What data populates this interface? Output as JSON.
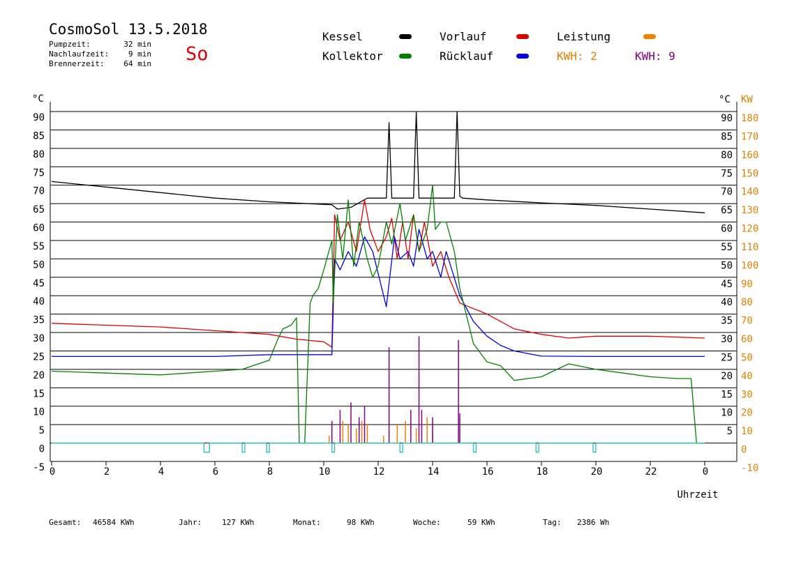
{
  "header": {
    "title": "CosmoSol 13.5.2018",
    "day": "So",
    "stats": [
      {
        "label": "Pumpzeit:",
        "value": "32 min"
      },
      {
        "label": "Nachlaufzeit:",
        "value": "9 min"
      },
      {
        "label": "Brennerzeit:",
        "value": "64 min"
      }
    ]
  },
  "legend": {
    "kessel": {
      "label": "Kessel",
      "color": "#000000"
    },
    "vorlauf": {
      "label": "Vorlauf",
      "color": "#e00000"
    },
    "leistung": {
      "label": "Leistung",
      "color": "#f08000"
    },
    "kollektor": {
      "label": "Kollektor",
      "color": "#008000"
    },
    "ruecklauf": {
      "label": "Rücklauf",
      "color": "#0000e0"
    },
    "kwh1": {
      "label": "KWH: 2",
      "color": "#e08000"
    },
    "kwh2": {
      "label": "KWH: 9",
      "color": "#800080"
    }
  },
  "footer": {
    "gesamt": {
      "label": "Gesamt:",
      "value": "46584 KWh"
    },
    "jahr": {
      "label": "Jahr:",
      "value": "127 KWh"
    },
    "monat": {
      "label": "Monat:",
      "value": "98 KWh"
    },
    "woche": {
      "label": "Woche:",
      "value": "59 KWh"
    },
    "tag": {
      "label": "Tag:",
      "value": "2386 Wh"
    }
  },
  "chart_data": {
    "type": "line",
    "x_unit_label": "Uhrzeit",
    "y_left_unit": "°C",
    "y_right_unit": "°C",
    "y_right2_unit": "KW",
    "xlim": [
      0,
      24
    ],
    "ylim": [
      -5,
      90
    ],
    "y2lim": [
      -10,
      180
    ],
    "x_ticks": [
      "0",
      "2",
      "4",
      "6",
      "8",
      "10",
      "12",
      "14",
      "16",
      "18",
      "20",
      "22",
      "0"
    ],
    "y_ticks": [
      "-5",
      "0",
      "5",
      "10",
      "15",
      "20",
      "25",
      "30",
      "35",
      "40",
      "45",
      "50",
      "55",
      "60",
      "65",
      "70",
      "75",
      "80",
      "85",
      "90"
    ],
    "y_ticks_right": [
      "5",
      "10",
      "15",
      "20",
      "25",
      "30",
      "35",
      "40",
      "45",
      "50",
      "55",
      "60",
      "65",
      "70",
      "75",
      "80",
      "85",
      "90"
    ],
    "y2_ticks": [
      "-10",
      "0",
      "10",
      "20",
      "30",
      "40",
      "50",
      "60",
      "70",
      "80",
      "90",
      "100",
      "110",
      "120",
      "130",
      "140",
      "150",
      "160",
      "170",
      "180"
    ],
    "grid": true,
    "series": [
      {
        "key": "kessel",
        "color": "#000000",
        "x": [
          0,
          2,
          4,
          6,
          8,
          10,
          10.3,
          10.5,
          11,
          11.6,
          12.3,
          12.4,
          12.5,
          12.8,
          13.3,
          13.4,
          13.5,
          13.6,
          14.8,
          14.9,
          15.0,
          15.1,
          16,
          18,
          20,
          22,
          24
        ],
        "y": [
          71,
          69.5,
          68,
          66.5,
          65.5,
          64.8,
          64.7,
          63.5,
          64,
          66.5,
          66.5,
          87,
          66.5,
          66.5,
          66.5,
          90,
          66.5,
          66.5,
          66.5,
          90,
          67,
          66.5,
          66,
          65.2,
          64.5,
          63.5,
          62.5
        ]
      },
      {
        "key": "vorlauf",
        "color": "#e00000",
        "x": [
          0,
          2,
          4,
          6,
          8,
          9,
          10,
          10.3,
          10.4,
          10.6,
          10.9,
          11.2,
          11.5,
          11.7,
          12,
          12.3,
          12.5,
          12.7,
          12.9,
          13.1,
          13.3,
          13.5,
          13.7,
          14,
          14.3,
          14.6,
          15,
          15.5,
          16,
          17,
          18,
          19,
          20,
          22,
          24
        ],
        "y": [
          32.5,
          32,
          31.5,
          30.5,
          29.5,
          28.2,
          27.5,
          26,
          62,
          55,
          60,
          52,
          66,
          58,
          52,
          56,
          61,
          50,
          60,
          50,
          62,
          52,
          60,
          48,
          52,
          45,
          38,
          36.5,
          35,
          31,
          29.5,
          28.5,
          29,
          29,
          28.5
        ]
      },
      {
        "key": "ruecklauf",
        "color": "#0000e0",
        "x": [
          0,
          2,
          4,
          6,
          8,
          9,
          10,
          10.3,
          10.4,
          10.6,
          10.9,
          11.2,
          11.5,
          11.8,
          12.2,
          12.3,
          12.6,
          12.8,
          13.1,
          13.3,
          13.5,
          13.8,
          14,
          14.3,
          14.5,
          15,
          15.5,
          16,
          16.5,
          17,
          18,
          20,
          22,
          24
        ],
        "y": [
          23.5,
          23.5,
          23.5,
          23.5,
          24,
          24,
          24,
          24,
          50,
          47,
          52,
          48,
          56,
          52,
          40,
          37,
          56,
          50,
          52,
          48,
          58,
          50,
          52,
          45,
          52,
          40,
          33,
          29,
          26.5,
          25,
          23.6,
          23.5,
          23.5,
          23.5
        ]
      },
      {
        "key": "kollektor",
        "color": "#008000",
        "x": [
          0,
          2,
          4,
          6,
          7,
          8,
          8.3,
          8.5,
          8.8,
          9.0,
          9.1,
          9.2,
          9.3,
          9.5,
          9.6,
          9.8,
          10,
          10.3,
          10.35,
          10.5,
          10.7,
          10.9,
          11.1,
          11.3,
          11.6,
          11.8,
          12,
          12.3,
          12.5,
          12.8,
          13,
          13.3,
          13.5,
          13.8,
          14,
          14.1,
          14.3,
          14.5,
          14.8,
          15,
          15.5,
          16,
          16.5,
          17,
          18,
          19,
          20,
          21,
          22,
          23,
          23.5,
          23.7,
          24
        ],
        "y": [
          19.5,
          19,
          18.5,
          19.5,
          20,
          22.5,
          28,
          31,
          32,
          34,
          0,
          0,
          0,
          38,
          40,
          42,
          47,
          55,
          38,
          62,
          50,
          66,
          48,
          60,
          50,
          45,
          48,
          60,
          54,
          65,
          55,
          62,
          52,
          58,
          70,
          58,
          60,
          60,
          52,
          42,
          27,
          22,
          21,
          17,
          18,
          21.5,
          20,
          19,
          18,
          17.5,
          17.5,
          0,
          0
        ]
      },
      {
        "key": "pumpe",
        "color": "#20c0c0",
        "x": [
          0,
          5.6,
          5.6,
          5.8,
          5.8,
          7.0,
          7.0,
          7.1,
          7.1,
          7.9,
          7.9,
          8.0,
          8.0,
          10.3,
          10.3,
          10.4,
          10.4,
          12.8,
          12.8,
          12.9,
          12.9,
          15.5,
          15.5,
          15.6,
          15.6,
          17.8,
          17.8,
          17.9,
          17.9,
          19.9,
          19.9,
          20.0,
          20.0,
          24
        ],
        "y": [
          0,
          0,
          -2.5,
          -2.5,
          0,
          0,
          -2.5,
          -2.5,
          0,
          0,
          -2.5,
          -2.5,
          0,
          0,
          -2.5,
          -2.5,
          0,
          0,
          -2.5,
          -2.5,
          0,
          0,
          -2.5,
          -2.5,
          0,
          0,
          -2.5,
          -2.5,
          0,
          0,
          -2.5,
          -2.5,
          0,
          0
        ]
      }
    ],
    "power_bars": {
      "purple": {
        "x": [
          10.3,
          10.6,
          11.0,
          11.3,
          11.5,
          12.4,
          13.2,
          13.5,
          13.6,
          14.0,
          14.95,
          15.0
        ],
        "y": [
          12,
          18,
          22,
          14,
          20,
          52,
          18,
          58,
          18,
          14,
          56,
          16
        ]
      },
      "orange": {
        "x": [
          10.2,
          10.7,
          10.9,
          11.2,
          11.4,
          11.6,
          12.2,
          12.7,
          13.0,
          13.4,
          13.8,
          14.0
        ],
        "y": [
          4,
          12,
          10,
          8,
          12,
          10,
          4,
          10,
          12,
          8,
          14,
          6
        ]
      }
    }
  }
}
